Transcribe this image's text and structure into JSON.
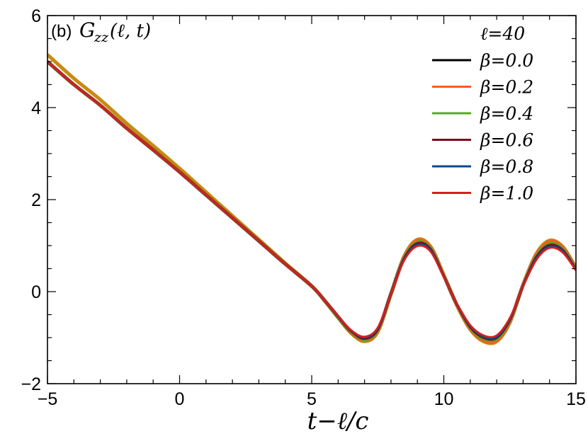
{
  "chart_data": {
    "type": "line",
    "panel_label": "(b)",
    "title": "G_zz(ℓ, t)",
    "title_main": "G",
    "title_sub": "zz",
    "title_args": "(ℓ, t)",
    "xlabel": "t−ℓ/c",
    "ylabel": "",
    "xlim": [
      -5,
      15
    ],
    "ylim": [
      -2,
      6
    ],
    "xticks": [
      -5,
      0,
      5,
      10,
      15
    ],
    "yticks": [
      -2,
      0,
      2,
      4,
      6
    ],
    "xtick_labels": [
      "−5",
      "0",
      "5",
      "10",
      "15"
    ],
    "ytick_labels": [
      "−2",
      "0",
      "2",
      "4",
      "6"
    ],
    "grid": false,
    "legend_position": "top-right",
    "legend_title": "ℓ=40",
    "x": [
      -5,
      -4,
      -3,
      -2,
      -1,
      0,
      1,
      2,
      3,
      4,
      5,
      5.5,
      6,
      6.5,
      7,
      7.5,
      8,
      8.5,
      9,
      9.5,
      10,
      10.5,
      11,
      11.5,
      12,
      12.5,
      13,
      13.5,
      14,
      14.5,
      15
    ],
    "series": [
      {
        "name": "β=0.0",
        "color": "#000000",
        "values": [
          5.0,
          4.5,
          4.05,
          3.55,
          3.08,
          2.6,
          2.1,
          1.6,
          1.1,
          0.6,
          0.12,
          -0.2,
          -0.55,
          -0.88,
          -1.05,
          -0.85,
          -0.05,
          0.75,
          1.1,
          0.95,
          0.35,
          -0.3,
          -0.8,
          -1.05,
          -1.05,
          -0.65,
          0.15,
          0.8,
          1.08,
          0.95,
          0.5
        ]
      },
      {
        "name": "β=0.2",
        "color": "#ff5a1f",
        "values": [
          5.0,
          4.5,
          4.05,
          3.55,
          3.08,
          2.6,
          2.1,
          1.6,
          1.1,
          0.6,
          0.12,
          -0.2,
          -0.55,
          -0.88,
          -1.06,
          -0.86,
          -0.06,
          0.76,
          1.11,
          0.96,
          0.36,
          -0.31,
          -0.81,
          -1.06,
          -1.06,
          -0.66,
          0.16,
          0.81,
          1.09,
          0.96,
          0.5
        ]
      },
      {
        "name": "β=0.4",
        "color": "#58a81f",
        "values": [
          5.0,
          4.5,
          4.05,
          3.55,
          3.08,
          2.6,
          2.1,
          1.6,
          1.1,
          0.6,
          0.12,
          -0.2,
          -0.55,
          -0.87,
          -1.04,
          -0.84,
          -0.05,
          0.74,
          1.08,
          0.94,
          0.34,
          -0.29,
          -0.79,
          -1.03,
          -1.03,
          -0.63,
          0.14,
          0.78,
          1.05,
          0.93,
          0.49
        ]
      },
      {
        "name": "β=0.6",
        "color": "#7b0a1e",
        "values": [
          5.0,
          4.5,
          4.05,
          3.55,
          3.08,
          2.6,
          2.1,
          1.6,
          1.1,
          0.6,
          0.12,
          -0.2,
          -0.54,
          -0.86,
          -1.02,
          -0.82,
          -0.05,
          0.72,
          1.05,
          0.92,
          0.33,
          -0.28,
          -0.77,
          -1.0,
          -1.0,
          -0.61,
          0.13,
          0.75,
          1.01,
          0.9,
          0.48
        ]
      },
      {
        "name": "β=0.8",
        "color": "#0c4a8c",
        "values": [
          5.0,
          4.5,
          4.05,
          3.55,
          3.08,
          2.6,
          2.1,
          1.6,
          1.1,
          0.6,
          0.12,
          -0.2,
          -0.54,
          -0.85,
          -1.0,
          -0.8,
          -0.05,
          0.7,
          1.02,
          0.9,
          0.32,
          -0.27,
          -0.75,
          -0.98,
          -0.98,
          -0.59,
          0.12,
          0.72,
          0.98,
          0.88,
          0.47
        ]
      },
      {
        "name": "β=1.0",
        "color": "#d81e1e",
        "values": [
          5.0,
          4.5,
          4.05,
          3.55,
          3.08,
          2.6,
          2.1,
          1.6,
          1.1,
          0.6,
          0.12,
          -0.2,
          -0.53,
          -0.84,
          -0.98,
          -0.78,
          -0.05,
          0.68,
          0.99,
          0.87,
          0.31,
          -0.26,
          -0.73,
          -0.95,
          -0.95,
          -0.57,
          0.11,
          0.69,
          0.95,
          0.85,
          0.46
        ]
      }
    ],
    "envelope_color": "#c88a10"
  }
}
